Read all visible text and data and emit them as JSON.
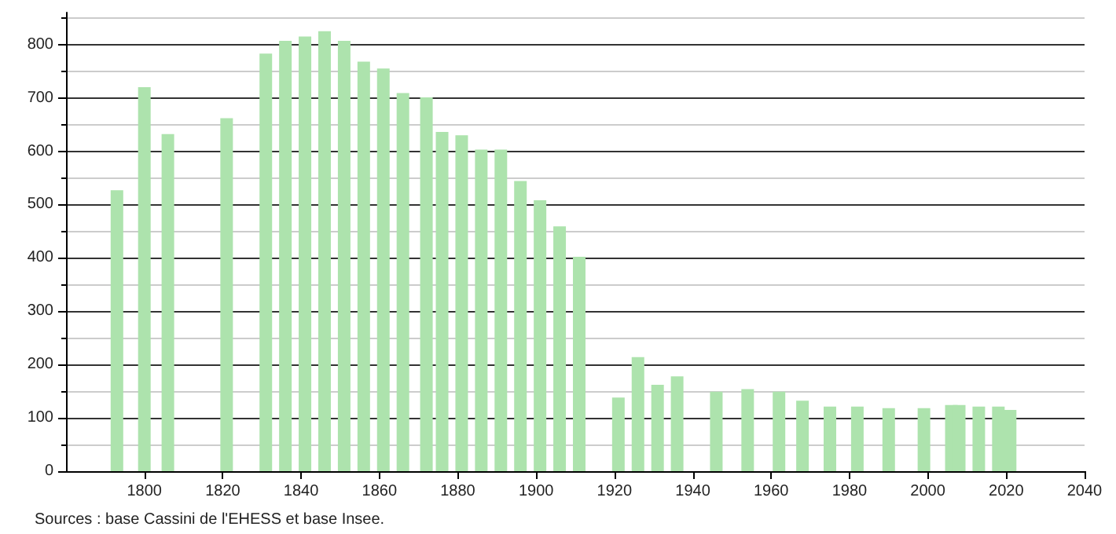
{
  "chart_data": {
    "type": "bar",
    "x": [
      1793,
      1800,
      1806,
      1821,
      1831,
      1836,
      1841,
      1846,
      1851,
      1856,
      1861,
      1866,
      1872,
      1876,
      1881,
      1886,
      1891,
      1896,
      1901,
      1906,
      1911,
      1921,
      1926,
      1931,
      1936,
      1946,
      1954,
      1962,
      1968,
      1975,
      1982,
      1990,
      1999,
      2006,
      2008,
      2013,
      2018,
      2021
    ],
    "values": [
      527,
      720,
      632,
      662,
      783,
      807,
      815,
      825,
      807,
      768,
      755,
      709,
      701,
      636,
      630,
      603,
      603,
      544,
      508,
      459,
      402,
      138,
      214,
      162,
      178,
      149,
      154,
      149,
      132,
      121,
      121,
      118,
      118,
      124,
      124,
      121,
      121,
      115
    ],
    "color": "#ade3ad",
    "xlim": [
      1780,
      2040
    ],
    "xticks": [
      1800,
      1820,
      1840,
      1860,
      1880,
      1900,
      1920,
      1940,
      1960,
      1980,
      2000,
      2020,
      2040
    ],
    "ylim": [
      0,
      860
    ],
    "yticks": [
      0,
      100,
      200,
      300,
      400,
      500,
      600,
      700,
      800
    ],
    "grid": "y",
    "annotations": [
      "Sources : base Cassini de l'EHESS et base Insee."
    ]
  }
}
